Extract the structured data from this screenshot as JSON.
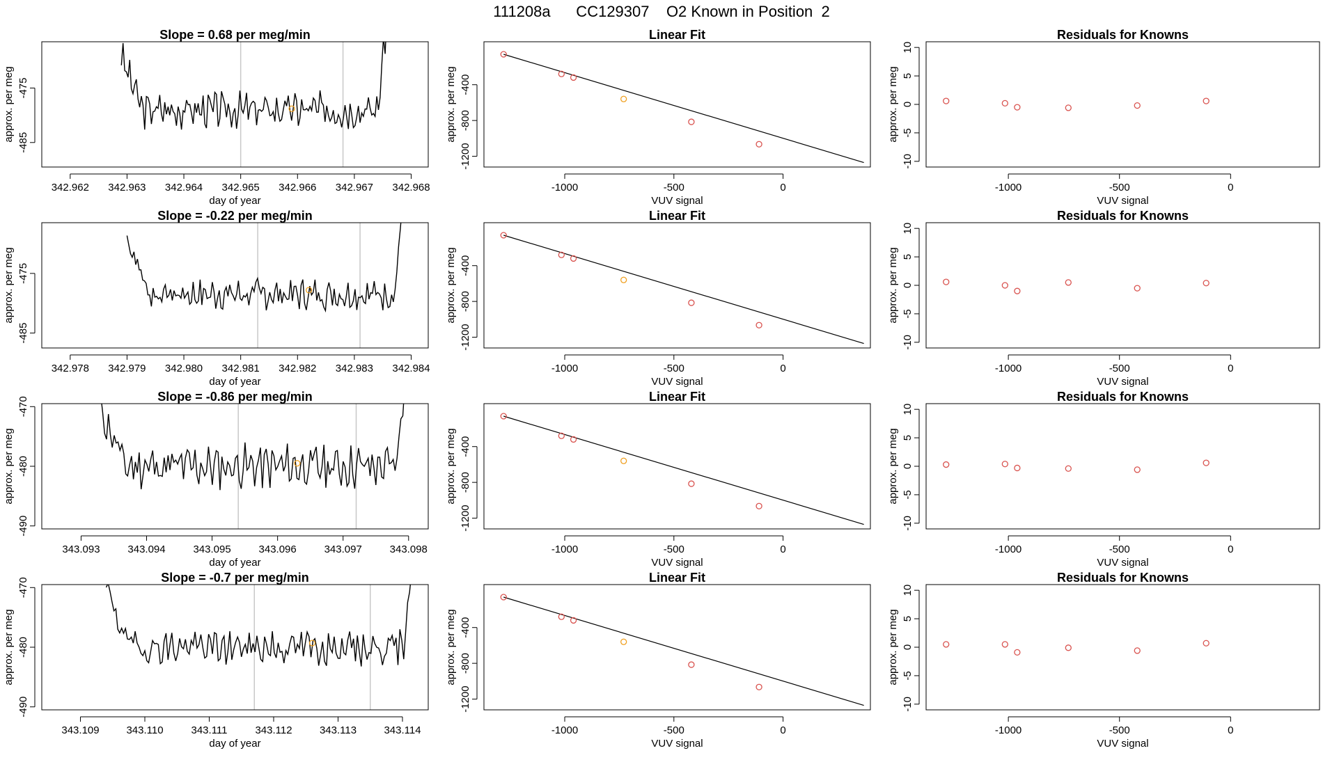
{
  "figure_title": "111208a      CC129307    O2 Known in Position  2",
  "colors": {
    "line": "#000000",
    "points": "#d9534f",
    "highlight": "#f0a020",
    "vline": "#c8c8c8",
    "frame": "#000000"
  },
  "chart_data": [
    {
      "type": "line",
      "panel": "timeseries",
      "row": 1,
      "title": "Slope =  0.68  per meg/min",
      "xlabel": "day of year",
      "ylabel": "approx. per meg",
      "xlim": [
        342.9615,
        342.9683
      ],
      "ylim": [
        -489.5,
        -466.5
      ],
      "xticks": [
        342.962,
        342.963,
        342.964,
        342.965,
        342.966,
        342.967,
        342.968
      ],
      "xtick_labels": [
        "342.962",
        "342.963",
        "342.964",
        "342.965",
        "342.966",
        "342.967",
        "342.968"
      ],
      "yticks": [
        -475,
        -485
      ],
      "ytick_labels": [
        "-475",
        "-485"
      ],
      "vlines": [
        342.965,
        342.9668
      ],
      "series_x_range": [
        342.9629,
        342.9676
      ],
      "series_baseline": -479,
      "series_noise": 2.5,
      "seed": 3,
      "highlight_point": {
        "x": 342.9659,
        "y": -478.8
      }
    },
    {
      "type": "scatter",
      "panel": "fit",
      "row": 1,
      "title": "Linear Fit",
      "xlabel": "VUV signal",
      "ylabel": "approx. per meg",
      "xlim": [
        -1370,
        400
      ],
      "ylim": [
        -1320,
        80
      ],
      "xticks": [
        -1000,
        -500,
        0
      ],
      "xtick_labels": [
        "-1000",
        "-500",
        "0"
      ],
      "yticks": [
        -400,
        -800,
        -1200
      ],
      "ytick_labels": [
        "-400",
        "-800",
        "-1200"
      ],
      "x": [
        -1280,
        -1015,
        -960,
        -730,
        -420,
        -110
      ],
      "y": [
        -60,
        -280,
        -320,
        -560,
        -815,
        -1065
      ],
      "highlight_index": 3,
      "fit_line": {
        "x": [
          -1280,
          370
        ],
        "y": [
          -60,
          -1270
        ]
      }
    },
    {
      "type": "scatter",
      "panel": "residuals",
      "row": 1,
      "title": "Residuals for Knowns",
      "xlabel": "VUV signal",
      "ylabel": "approx. per meg",
      "xlim": [
        -1370,
        400
      ],
      "ylim": [
        -11,
        11
      ],
      "xticks": [
        -1000,
        -500,
        0
      ],
      "xtick_labels": [
        "-1000",
        "-500",
        "0"
      ],
      "yticks": [
        10,
        5,
        0,
        -5,
        -10
      ],
      "ytick_labels": [
        "10",
        "5",
        "0",
        "-5",
        "-10"
      ],
      "x": [
        -1280,
        -1015,
        -960,
        -730,
        -420,
        -110
      ],
      "y": [
        0.6,
        0.2,
        -0.5,
        -0.6,
        -0.2,
        0.6
      ]
    },
    {
      "type": "line",
      "panel": "timeseries",
      "row": 2,
      "title": "Slope =  -0.22  per meg/min",
      "xlabel": "day of year",
      "ylabel": "approx. per meg",
      "xlim": [
        342.9775,
        342.9843
      ],
      "ylim": [
        -487.5,
        -466.5
      ],
      "xticks": [
        342.978,
        342.979,
        342.98,
        342.981,
        342.982,
        342.983,
        342.984
      ],
      "xtick_labels": [
        "342.978",
        "342.979",
        "342.980",
        "342.981",
        "342.982",
        "342.983",
        "342.984"
      ],
      "yticks": [
        -475,
        -485
      ],
      "ytick_labels": [
        "-475",
        "-485"
      ],
      "vlines": [
        342.9813,
        342.9831
      ],
      "series_x_range": [
        342.979,
        342.9839
      ],
      "series_baseline": -478.5,
      "series_noise": 2.0,
      "seed": 7,
      "highlight_point": {
        "x": 342.9822,
        "y": -477.8
      }
    },
    {
      "type": "scatter",
      "panel": "fit",
      "row": 2,
      "title": "Linear Fit",
      "xlabel": "VUV signal",
      "ylabel": "approx. per meg",
      "xlim": [
        -1370,
        400
      ],
      "ylim": [
        -1320,
        80
      ],
      "xticks": [
        -1000,
        -500,
        0
      ],
      "xtick_labels": [
        "-1000",
        "-500",
        "0"
      ],
      "yticks": [
        -400,
        -800,
        -1200
      ],
      "ytick_labels": [
        "-400",
        "-800",
        "-1200"
      ],
      "x": [
        -1280,
        -1015,
        -960,
        -730,
        -420,
        -110
      ],
      "y": [
        -60,
        -280,
        -320,
        -560,
        -815,
        -1065
      ],
      "highlight_index": 3,
      "fit_line": {
        "x": [
          -1280,
          370
        ],
        "y": [
          -60,
          -1270
        ]
      }
    },
    {
      "type": "scatter",
      "panel": "residuals",
      "row": 2,
      "title": "Residuals for Knowns",
      "xlabel": "VUV signal",
      "ylabel": "approx. per meg",
      "xlim": [
        -1370,
        400
      ],
      "ylim": [
        -11,
        11
      ],
      "xticks": [
        -1000,
        -500,
        0
      ],
      "xtick_labels": [
        "-1000",
        "-500",
        "0"
      ],
      "yticks": [
        10,
        5,
        0,
        -5,
        -10
      ],
      "ytick_labels": [
        "10",
        "5",
        "0",
        "-5",
        "-10"
      ],
      "x": [
        -1280,
        -1015,
        -960,
        -730,
        -420,
        -110
      ],
      "y": [
        0.6,
        0.0,
        -1.0,
        0.5,
        -0.5,
        0.4
      ]
    },
    {
      "type": "line",
      "panel": "timeseries",
      "row": 3,
      "title": "Slope =  -0.86  per meg/min",
      "xlabel": "day of year",
      "ylabel": "approx. per meg",
      "xlim": [
        343.0924,
        343.0983
      ],
      "ylim": [
        -490.5,
        -469.5
      ],
      "xticks": [
        343.093,
        343.094,
        343.095,
        343.096,
        343.097,
        343.098
      ],
      "xtick_labels": [
        "343.093",
        "343.094",
        "343.095",
        "343.096",
        "343.097",
        "343.098"
      ],
      "yticks": [
        -470,
        -480,
        -490
      ],
      "ytick_labels": [
        "-470",
        "-480",
        "-490"
      ],
      "vlines": [
        343.0954,
        343.0972
      ],
      "series_x_range": [
        343.0933,
        343.098
      ],
      "series_baseline": -480,
      "series_noise": 2.8,
      "seed": 11,
      "highlight_point": {
        "x": 343.0963,
        "y": -479.5
      }
    },
    {
      "type": "scatter",
      "panel": "fit",
      "row": 3,
      "title": "Linear Fit",
      "xlabel": "VUV signal",
      "ylabel": "approx. per meg",
      "xlim": [
        -1370,
        400
      ],
      "ylim": [
        -1320,
        80
      ],
      "xticks": [
        -1000,
        -500,
        0
      ],
      "xtick_labels": [
        "-1000",
        "-500",
        "0"
      ],
      "yticks": [
        -400,
        -800,
        -1200
      ],
      "ytick_labels": [
        "-400",
        "-800",
        "-1200"
      ],
      "x": [
        -1280,
        -1015,
        -960,
        -730,
        -420,
        -110
      ],
      "y": [
        -60,
        -280,
        -320,
        -560,
        -815,
        -1065
      ],
      "highlight_index": 3,
      "fit_line": {
        "x": [
          -1280,
          370
        ],
        "y": [
          -60,
          -1270
        ]
      }
    },
    {
      "type": "scatter",
      "panel": "residuals",
      "row": 3,
      "title": "Residuals for Knowns",
      "xlabel": "VUV signal",
      "ylabel": "approx. per meg",
      "xlim": [
        -1370,
        400
      ],
      "ylim": [
        -11,
        11
      ],
      "xticks": [
        -1000,
        -500,
        0
      ],
      "xtick_labels": [
        "-1000",
        "-500",
        "0"
      ],
      "yticks": [
        10,
        5,
        0,
        -5,
        -10
      ],
      "ytick_labels": [
        "10",
        "5",
        "0",
        "-5",
        "-10"
      ],
      "x": [
        -1280,
        -1015,
        -960,
        -730,
        -420,
        -110
      ],
      "y": [
        0.3,
        0.4,
        -0.3,
        -0.4,
        -0.6,
        0.6
      ]
    },
    {
      "type": "line",
      "panel": "timeseries",
      "row": 4,
      "title": "Slope =  -0.7  per meg/min",
      "xlabel": "day of year",
      "ylabel": "approx. per meg",
      "xlim": [
        343.1084,
        343.1144
      ],
      "ylim": [
        -490.5,
        -469.5
      ],
      "xticks": [
        343.109,
        343.11,
        343.111,
        343.112,
        343.113,
        343.114
      ],
      "xtick_labels": [
        "343.109",
        "343.110",
        "343.111",
        "343.112",
        "343.113",
        "343.114"
      ],
      "yticks": [
        -470,
        -480,
        -490
      ],
      "ytick_labels": [
        "-470",
        "-480",
        "-490"
      ],
      "vlines": [
        343.1117,
        343.1135
      ],
      "series_x_range": [
        343.1094,
        343.1142
      ],
      "series_baseline": -480,
      "series_noise": 2.3,
      "seed": 19,
      "highlight_point": {
        "x": 343.1126,
        "y": -479.3
      }
    },
    {
      "type": "scatter",
      "panel": "fit",
      "row": 4,
      "title": "Linear Fit",
      "xlabel": "VUV signal",
      "ylabel": "approx. per meg",
      "xlim": [
        -1370,
        400
      ],
      "ylim": [
        -1320,
        80
      ],
      "xticks": [
        -1000,
        -500,
        0
      ],
      "xtick_labels": [
        "-1000",
        "-500",
        "0"
      ],
      "yticks": [
        -400,
        -800,
        -1200
      ],
      "ytick_labels": [
        "-400",
        "-800",
        "-1200"
      ],
      "x": [
        -1280,
        -1015,
        -960,
        -730,
        -420,
        -110
      ],
      "y": [
        -60,
        -280,
        -320,
        -560,
        -815,
        -1065
      ],
      "highlight_index": 3,
      "fit_line": {
        "x": [
          -1280,
          370
        ],
        "y": [
          -60,
          -1270
        ]
      }
    },
    {
      "type": "scatter",
      "panel": "residuals",
      "row": 4,
      "title": "Residuals for Knowns",
      "xlabel": "VUV signal",
      "ylabel": "approx. per meg",
      "xlim": [
        -1370,
        400
      ],
      "ylim": [
        -11,
        11
      ],
      "xticks": [
        -1000,
        -500,
        0
      ],
      "xtick_labels": [
        "-1000",
        "-500",
        "0"
      ],
      "yticks": [
        10,
        5,
        0,
        -5,
        -10
      ],
      "ytick_labels": [
        "10",
        "5",
        "0",
        "-5",
        "-10"
      ],
      "x": [
        -1280,
        -1015,
        -960,
        -730,
        -420,
        -110
      ],
      "y": [
        0.5,
        0.5,
        -0.9,
        -0.1,
        -0.6,
        0.7
      ]
    }
  ]
}
